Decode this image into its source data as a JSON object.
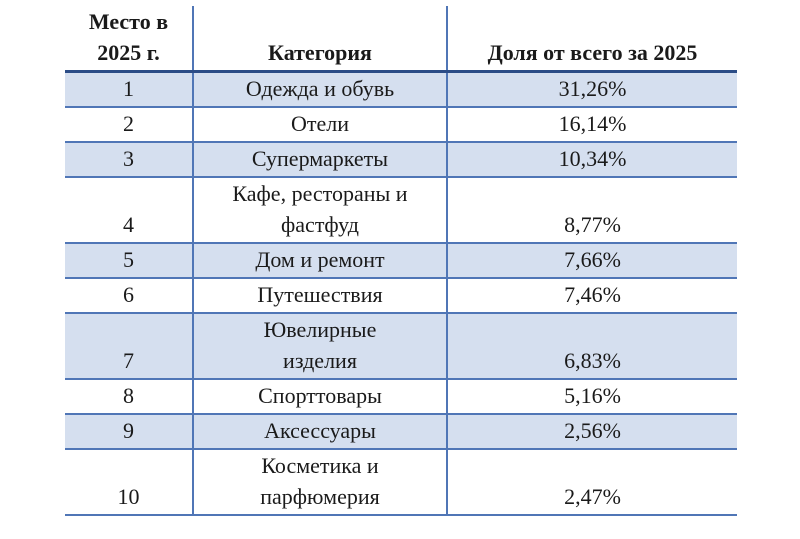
{
  "table": {
    "columns": [
      "Место в\n2025 г.",
      "Категория",
      "Доля от всего за 2025"
    ],
    "rows": [
      {
        "rank": "1",
        "category": "Одежда и обувь",
        "share": "31,26%"
      },
      {
        "rank": "2",
        "category": "Отели",
        "share": "16,14%"
      },
      {
        "rank": "3",
        "category": "Супермаркеты",
        "share": "10,34%"
      },
      {
        "rank": "4",
        "category": "Кафе, рестораны и\nфастфуд",
        "share": "8,77%"
      },
      {
        "rank": "5",
        "category": "Дом и ремонт",
        "share": "7,66%"
      },
      {
        "rank": "6",
        "category": "Путешествия",
        "share": "7,46%"
      },
      {
        "rank": "7",
        "category": "Ювелирные\nизделия",
        "share": "6,83%"
      },
      {
        "rank": "8",
        "category": "Спорттовары",
        "share": "5,16%"
      },
      {
        "rank": "9",
        "category": "Аксессуары",
        "share": "2,56%"
      },
      {
        "rank": "10",
        "category": "Косметика и\nпарфюмерия",
        "share": "2,47%"
      }
    ]
  },
  "chart_data": {
    "type": "table",
    "title": "",
    "columns": [
      "Место в 2025 г.",
      "Категория",
      "Доля от всего за 2025"
    ],
    "rows": [
      [
        1,
        "Одежда и обувь",
        "31,26%"
      ],
      [
        2,
        "Отели",
        "16,14%"
      ],
      [
        3,
        "Супермаркеты",
        "10,34%"
      ],
      [
        4,
        "Кафе, рестораны и фастфуд",
        "8,77%"
      ],
      [
        5,
        "Дом и ремонт",
        "7,66%"
      ],
      [
        6,
        "Путешествия",
        "7,46%"
      ],
      [
        7,
        "Ювелирные изделия",
        "6,83%"
      ],
      [
        8,
        "Спорттовары",
        "5,16%"
      ],
      [
        9,
        "Аксессуары",
        "2,56%"
      ],
      [
        10,
        "Косметика и парфюмерия",
        "2,47%"
      ]
    ],
    "share_values_percent": [
      31.26,
      16.14,
      10.34,
      8.77,
      7.66,
      7.46,
      6.83,
      5.16,
      2.56,
      2.47
    ],
    "layout_hints": {
      "banded_rows": "odd data rows shaded",
      "header_separator": "thick dark blue line",
      "outer_side_borders": "none"
    }
  },
  "colors": {
    "band_fill": "#D5DFEF",
    "grid_line": "#5076B6",
    "header_rule": "#2B4C86",
    "text": "#1a1a1a",
    "background": "#ffffff"
  }
}
